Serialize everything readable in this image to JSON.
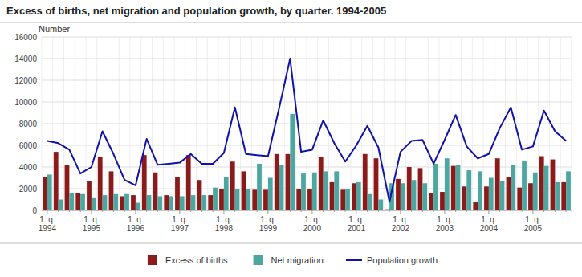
{
  "chart_data": {
    "type": "bar",
    "title": "Excess of births, net migration and population growth, by quarter. 1994-2005",
    "y_label": "Number",
    "categories": [
      "1. q.\n1994",
      null,
      null,
      null,
      "1. q.\n1995",
      null,
      null,
      null,
      "1. q.\n1996",
      null,
      null,
      null,
      "1. q.\n1997",
      null,
      null,
      null,
      "1. q.\n1998",
      null,
      null,
      null,
      "1. q.\n1999",
      null,
      null,
      null,
      "1. q.\n2000",
      null,
      null,
      null,
      "1. q.\n2001",
      null,
      null,
      null,
      "1. q.\n2002",
      null,
      null,
      null,
      "1. q.\n2003",
      null,
      null,
      null,
      "1. q.\n2004",
      null,
      null,
      null,
      "1. q.\n2005",
      null,
      null,
      null
    ],
    "series": [
      {
        "name": "Excess of births",
        "type": "bar",
        "color": "#8B1A1A",
        "values": [
          3100,
          5400,
          4200,
          1600,
          2700,
          4900,
          3600,
          1300,
          1400,
          5100,
          3500,
          1400,
          3100,
          5100,
          2800,
          1400,
          2000,
          4500,
          3600,
          1900,
          1900,
          5200,
          5200,
          2000,
          2000,
          4900,
          2600,
          1900,
          2500,
          5200,
          4800,
          100,
          2900,
          4000,
          3900,
          1600,
          1700,
          4100,
          2200,
          800,
          2200,
          4800,
          3100,
          2100,
          2500,
          5000,
          4700,
          2600
        ]
      },
      {
        "name": "Net migration",
        "type": "bar",
        "color": "#4DA6A0",
        "values": [
          3300,
          1000,
          1600,
          1500,
          1200,
          1400,
          1500,
          1500,
          700,
          1400,
          1300,
          1300,
          1300,
          1400,
          1400,
          2100,
          3100,
          2000,
          2000,
          4300,
          3000,
          4200,
          8900,
          3400,
          3500,
          3600,
          3600,
          2000,
          2600,
          1500,
          1000,
          2500,
          2500,
          2800,
          2500,
          4300,
          4800,
          4200,
          3700,
          3600,
          3000,
          2700,
          4200,
          4600,
          3500,
          4100,
          2600,
          3600
        ]
      },
      {
        "name": "Population growth",
        "type": "line",
        "color": "#1010AA",
        "values": [
          6400,
          6200,
          5600,
          3400,
          4000,
          7300,
          5200,
          2800,
          2300,
          6600,
          4200,
          4300,
          4400,
          5200,
          4300,
          4300,
          5300,
          9500,
          5200,
          5100,
          5000,
          9400,
          14000,
          5400,
          5600,
          8300,
          6200,
          4500,
          6000,
          7800,
          5800,
          800,
          5400,
          6400,
          6500,
          4300,
          6500,
          8800,
          5900,
          4800,
          5200,
          7600,
          9500,
          5600,
          5900,
          9200,
          7300,
          6400
        ]
      }
    ],
    "ylim": [
      0,
      16000
    ],
    "yticks": [
      0,
      2000,
      4000,
      6000,
      8000,
      10000,
      12000,
      14000,
      16000
    ],
    "grid": true,
    "legend": "bottom"
  }
}
